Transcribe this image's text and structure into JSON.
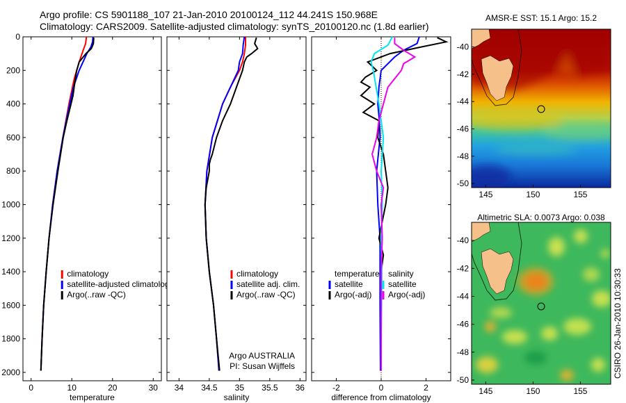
{
  "header": {
    "line1": "Argo profile: CS 5901188_107 21-Jan-2010 20100124_112 44.241S 150.968E",
    "line2": "Climatology: CARS2009. Satellite-adjusted climatology: synTS_20100120.nc (1.8d earlier)"
  },
  "credit": "CSIRO 26-Jan-2010 10:30:33",
  "colors": {
    "climatology": "#ff0000",
    "satellite": "#0000ff",
    "argo": "#000000",
    "sat_sal": "#00e5ee",
    "argo_sal": "#ee00ee"
  },
  "chart_data": [
    {
      "type": "line",
      "title": "",
      "xlabel": "temperature",
      "ylabel": "",
      "xlim": [
        -2,
        32
      ],
      "ylim": [
        2050,
        0
      ],
      "xticks": [
        "0",
        "10",
        "20",
        "30"
      ],
      "yticks": [
        "0",
        "200",
        "400",
        "600",
        "800",
        "1000",
        "1200",
        "1400",
        "1600",
        "1800",
        "2000"
      ],
      "legend": [
        "climatology",
        "satellite-adjusted climatology",
        "Argo(..raw -QC)"
      ],
      "series": [
        {
          "name": "climatology",
          "depth": [
            0,
            40,
            80,
            150,
            250,
            400,
            600,
            800,
            1000,
            1200,
            1400,
            1600,
            1800,
            1990
          ],
          "values": [
            13.6,
            13.4,
            12.8,
            11.8,
            10.6,
            9.3,
            7.8,
            6.4,
            5.3,
            4.4,
            3.7,
            3.1,
            2.7,
            2.4
          ]
        },
        {
          "name": "satellite-adjusted climatology",
          "depth": [
            0,
            30,
            60,
            100,
            200,
            300,
            400,
            600,
            800,
            1000,
            1200,
            1400,
            1600,
            1800,
            1990
          ],
          "values": [
            15.2,
            15.1,
            14.7,
            13.7,
            11.8,
            10.4,
            9.5,
            7.8,
            6.4,
            5.3,
            4.4,
            3.7,
            3.1,
            2.7,
            2.4
          ]
        },
        {
          "name": "Argo(..raw -QC)",
          "depth": [
            5,
            40,
            70,
            100,
            150,
            200,
            260,
            350,
            400,
            500,
            600,
            800,
            1000,
            1200,
            1400,
            1600,
            1800,
            1990
          ],
          "values": [
            15.4,
            15.3,
            14.8,
            13.5,
            11.8,
            11.2,
            10.8,
            10.3,
            9.8,
            8.8,
            7.9,
            6.6,
            5.4,
            4.4,
            3.7,
            3.1,
            2.7,
            2.4
          ]
        }
      ]
    },
    {
      "type": "line",
      "title": "",
      "xlabel": "salinity",
      "ylabel": "",
      "xlim": [
        33.8,
        36.1
      ],
      "ylim": [
        2050,
        0
      ],
      "xticks": [
        "34",
        "34.5",
        "35",
        "35.5",
        "36"
      ],
      "legend": [
        "climatology",
        "satellite adj. clim.",
        "Argo(..raw -QC)"
      ],
      "annotation": [
        "Argo AUSTRALIA",
        "PI: Susan Wijffels"
      ],
      "series": [
        {
          "name": "climatology",
          "depth": [
            0,
            50,
            100,
            150,
            200,
            300,
            400,
            600,
            800,
            1000,
            1200,
            1400,
            1600,
            1800,
            1990
          ],
          "values": [
            35.1,
            35.1,
            35.08,
            35.05,
            35.0,
            34.85,
            34.72,
            34.55,
            34.46,
            34.43,
            34.45,
            34.5,
            34.57,
            34.62,
            34.66
          ]
        },
        {
          "name": "satellite adj. clim.",
          "depth": [
            0,
            50,
            100,
            150,
            200,
            300,
            400,
            600,
            800,
            1000,
            1200,
            1400,
            1600,
            1800,
            1990
          ],
          "values": [
            35.08,
            35.06,
            35.05,
            35.0,
            34.98,
            34.85,
            34.72,
            34.55,
            34.46,
            34.43,
            34.45,
            34.5,
            34.57,
            34.62,
            34.66
          ]
        },
        {
          "name": "Argo(..raw -QC)",
          "depth": [
            5,
            40,
            70,
            100,
            120,
            150,
            200,
            300,
            400,
            500,
            600,
            700,
            730,
            760,
            800,
            900,
            1000,
            1200,
            1400,
            1600,
            1800,
            1990
          ],
          "values": [
            35.28,
            35.25,
            35.3,
            35.2,
            35.12,
            35.08,
            35.05,
            34.95,
            34.85,
            34.72,
            34.62,
            34.55,
            34.52,
            34.5,
            34.5,
            34.45,
            34.43,
            34.45,
            34.5,
            34.57,
            34.62,
            34.67
          ]
        }
      ]
    },
    {
      "type": "line",
      "title": "",
      "xlabel": "difference from climatology",
      "ylabel": "",
      "xlim": [
        -3.1,
        3.1
      ],
      "ylim": [
        2050,
        0
      ],
      "xticks": [
        "-2",
        "0",
        "2"
      ],
      "legend": [
        "temperature",
        "satellite",
        "Argo(-adj)",
        "salinity",
        "satellite",
        "Argo(-adj)"
      ],
      "series": [
        {
          "name": "temperature satellite",
          "depth": [
            0,
            40,
            80,
            120,
            200,
            300,
            400,
            500,
            600,
            800,
            1000,
            1200,
            1400,
            1600,
            1800,
            1990
          ],
          "values": [
            1.7,
            1.6,
            1.0,
            0.6,
            0.0,
            -0.1,
            -0.15,
            -0.08,
            -0.05,
            -0.2,
            -0.15,
            -0.05,
            -0.05,
            -0.05,
            -0.04,
            -0.03
          ]
        },
        {
          "name": "temperature Argo(-adj)",
          "depth": [
            5,
            30,
            60,
            100,
            150,
            200,
            240,
            270,
            300,
            350,
            400,
            450,
            500,
            600,
            700,
            800,
            900,
            1000,
            1100,
            1200,
            1300,
            1400,
            1600,
            1800,
            1990
          ],
          "values": [
            2.5,
            2.9,
            1.8,
            0.4,
            -0.6,
            -0.2,
            -0.7,
            -0.9,
            -0.5,
            -0.9,
            -0.3,
            -0.8,
            -0.1,
            -0.15,
            0.1,
            0.2,
            0.3,
            0.2,
            0.05,
            -0.1,
            0.1,
            0.0,
            0.0,
            0.0,
            0.0
          ]
        },
        {
          "name": "salinity satellite",
          "depth": [
            0,
            50,
            100,
            150,
            200,
            400,
            600,
            800,
            1000,
            1200,
            1400,
            1600,
            1800,
            1990
          ],
          "values": [
            0.5,
            0.3,
            -0.3,
            -0.45,
            -0.35,
            -0.1,
            0.1,
            0.0,
            0.05,
            0.0,
            0.03,
            0.02,
            0.0,
            0.0
          ]
        },
        {
          "name": "salinity Argo(-adj)",
          "depth": [
            5,
            40,
            80,
            120,
            160,
            200,
            300,
            400,
            500,
            600,
            700,
            800,
            900,
            1000,
            1200,
            1400,
            1600,
            1800,
            1990
          ],
          "values": [
            0.6,
            0.6,
            1.0,
            1.5,
            1.0,
            0.9,
            0.3,
            0.1,
            -0.1,
            -0.2,
            -0.4,
            -0.2,
            0.1,
            0.0,
            0.05,
            0.0,
            0.0,
            0.0,
            0.0
          ]
        }
      ]
    },
    {
      "type": "heatmap",
      "title": "AMSR-E SST: 15.1 Argo: 15.2",
      "xlabel": "",
      "ylabel": "",
      "xlim": [
        143.5,
        158.2
      ],
      "ylim": [
        -50.3,
        -38.7
      ],
      "xticks": [
        "145",
        "150",
        "155"
      ],
      "yticks": [
        "-40",
        "-42",
        "-44",
        "-46",
        "-48",
        "-50"
      ],
      "float_position": {
        "lon": 150.968,
        "lat": -44.241
      }
    },
    {
      "type": "heatmap",
      "title": "Altimetric SLA: 0.0073 Argo: 0.038",
      "xlabel": "",
      "ylabel": "",
      "xlim": [
        143.5,
        158.2
      ],
      "ylim": [
        -50.3,
        -38.7
      ],
      "xticks": [
        "145",
        "150",
        "155"
      ],
      "yticks": [
        "-40",
        "-42",
        "-44",
        "-46",
        "-48",
        "-50"
      ],
      "float_position": {
        "lon": 150.968,
        "lat": -44.241
      }
    }
  ]
}
